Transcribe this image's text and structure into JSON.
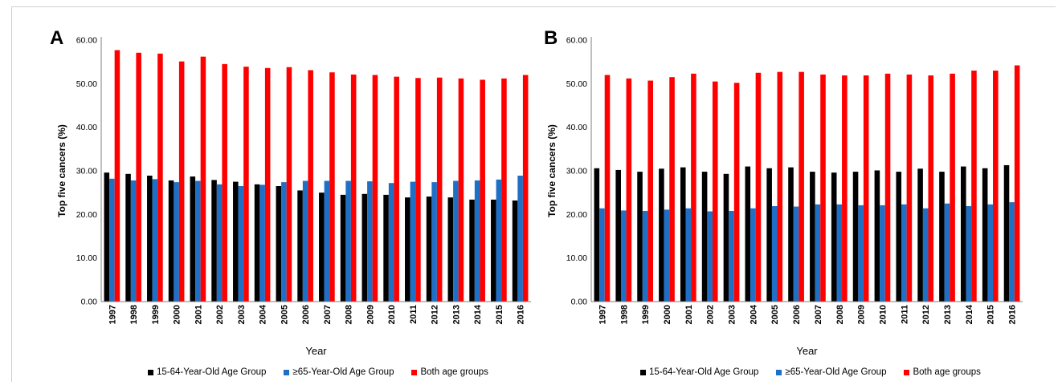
{
  "colors": {
    "s1": "#000000",
    "s2": "#1f6fc5",
    "s3": "#ff0000",
    "axis": "#7f7f7f"
  },
  "chart_data": [
    {
      "panel": "A",
      "type": "bar",
      "ylabel": "Top five cancers (%)",
      "xlabel": "Year",
      "ylim": [
        0,
        60
      ],
      "yticks": [
        "0.00",
        "10.00",
        "20.00",
        "30.00",
        "40.00",
        "50.00",
        "60.00"
      ],
      "categories": [
        "1997",
        "1998",
        "1999",
        "2000",
        "2001",
        "2002",
        "2003",
        "2004",
        "2005",
        "2006",
        "2007",
        "2008",
        "2009",
        "2010",
        "2011",
        "2012",
        "2013",
        "2014",
        "2015",
        "2016"
      ],
      "grid": false,
      "legend": "bottom",
      "series": [
        {
          "name": "15-64-Year-Old Age Group",
          "values": [
            29.6,
            29.3,
            28.9,
            27.8,
            28.7,
            27.9,
            27.5,
            26.9,
            26.5,
            25.5,
            25.0,
            24.5,
            24.7,
            24.5,
            23.9,
            24.1,
            23.9,
            23.4,
            23.4,
            23.2
          ]
        },
        {
          "name": "≥65-Year-Old Age Group",
          "values": [
            28.2,
            27.8,
            28.1,
            27.4,
            27.7,
            26.9,
            26.5,
            26.8,
            27.4,
            27.7,
            27.7,
            27.7,
            27.6,
            27.2,
            27.5,
            27.4,
            27.7,
            27.8,
            28.0,
            28.9
          ]
        },
        {
          "name": "Both age groups",
          "values": [
            57.7,
            57.1,
            56.9,
            55.1,
            56.2,
            54.5,
            53.9,
            53.6,
            53.8,
            53.1,
            52.6,
            52.1,
            52.0,
            51.6,
            51.3,
            51.4,
            51.2,
            50.9,
            51.2,
            52.0
          ]
        }
      ]
    },
    {
      "panel": "B",
      "type": "bar",
      "ylabel": "Top five cancers (%)",
      "xlabel": "Year",
      "ylim": [
        0,
        60
      ],
      "yticks": [
        "0.00",
        "10.00",
        "20.00",
        "30.00",
        "40.00",
        "50.00",
        "60.00"
      ],
      "categories": [
        "1997",
        "1998",
        "1999",
        "2000",
        "2001",
        "2002",
        "2003",
        "2004",
        "2005",
        "2006",
        "2007",
        "2008",
        "2009",
        "2010",
        "2011",
        "2012",
        "2013",
        "2014",
        "2015",
        "2016"
      ],
      "grid": false,
      "legend": "bottom",
      "series": [
        {
          "name": "15-64-Year-Old Age Group",
          "values": [
            30.6,
            30.2,
            29.8,
            30.5,
            30.8,
            29.8,
            29.3,
            31.0,
            30.6,
            30.8,
            29.8,
            29.6,
            29.8,
            30.1,
            29.8,
            30.5,
            29.8,
            31.0,
            30.6,
            31.3
          ]
        },
        {
          "name": "≥65-Year-Old Age Group",
          "values": [
            21.4,
            20.9,
            20.8,
            21.1,
            21.4,
            20.7,
            20.8,
            21.4,
            21.9,
            21.8,
            22.3,
            22.3,
            22.1,
            22.1,
            22.3,
            21.4,
            22.5,
            21.9,
            22.3,
            22.8
          ]
        },
        {
          "name": "Both age groups",
          "values": [
            52.0,
            51.2,
            50.7,
            51.5,
            52.3,
            50.5,
            50.2,
            52.5,
            52.7,
            52.7,
            52.1,
            51.9,
            51.9,
            52.3,
            52.1,
            51.9,
            52.3,
            53.0,
            53.0,
            54.2
          ]
        }
      ]
    }
  ]
}
